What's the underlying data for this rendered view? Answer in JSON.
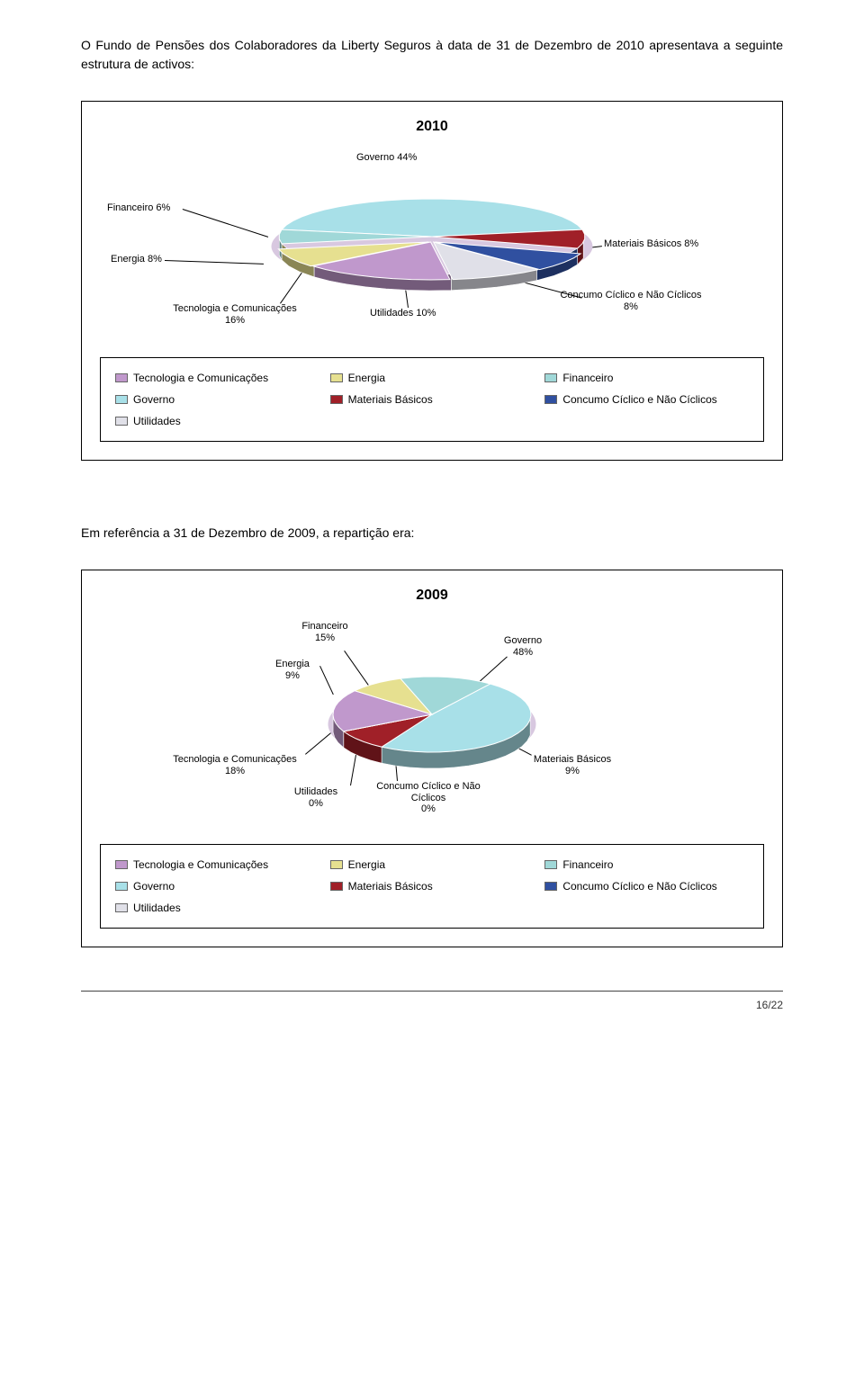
{
  "intro_text": "O Fundo de Pensões dos Colaboradores da Liberty Seguros à data de 31 de Dezembro de 2010 apresentava a seguinte estrutura de activos:",
  "mid_text": "Em referência a 31 de Dezembro de 2009, a repartição era:",
  "page_number": "16/22",
  "palette": {
    "tec": "#c098cc",
    "energia": "#e6e090",
    "financeiro": "#a0d8d8",
    "governo": "#a8e0e8",
    "materiais": "#a02028",
    "concumo": "#3050a0",
    "utilidades": "#e0e0e8",
    "plate": "#d8c8e0"
  },
  "chart2010": {
    "title": "2010",
    "type": "pie3d",
    "slices": [
      {
        "key": "governo",
        "label": "Governo 44%",
        "value": 44
      },
      {
        "key": "materiais",
        "label": "Materiais Básicos 8%",
        "value": 8
      },
      {
        "key": "concumo",
        "label": "Concumo Cíclico e Não Cíclicos\n8%",
        "value": 8
      },
      {
        "key": "utilidades",
        "label": "Utilidades 10%",
        "value": 10
      },
      {
        "key": "tec",
        "label": "Tecnologia e Comunicações\n16%",
        "value": 16
      },
      {
        "key": "energia",
        "label": "Energia 8%",
        "value": 8
      },
      {
        "key": "financeiro",
        "label": "Financeiro 6%",
        "value": 6
      }
    ],
    "legend": [
      [
        "Tecnologia e Comunicações",
        "tec"
      ],
      [
        "Energia",
        "energia"
      ],
      [
        "Financeiro",
        "financeiro"
      ],
      [
        "Governo",
        "governo"
      ],
      [
        "Materiais Básicos",
        "materiais"
      ],
      [
        "Concumo Cíclico e Não Cíclicos",
        "concumo"
      ],
      [
        "Utilidades",
        "utilidades"
      ]
    ]
  },
  "chart2009": {
    "title": "2009",
    "type": "pie3d",
    "slices": [
      {
        "key": "governo",
        "label": "Governo\n48%",
        "value": 48
      },
      {
        "key": "materiais",
        "label": "Materiais Básicos\n9%",
        "value": 9
      },
      {
        "key": "concumo",
        "label": "Concumo Cíclico e Não\nCíclicos\n0%",
        "value": 0
      },
      {
        "key": "utilidades",
        "label": "Utilidades\n0%",
        "value": 0
      },
      {
        "key": "tec",
        "label": "Tecnologia e Comunicações\n18%",
        "value": 18
      },
      {
        "key": "energia",
        "label": "Energia\n9%",
        "value": 9
      },
      {
        "key": "financeiro",
        "label": "Financeiro\n15%",
        "value": 15
      }
    ],
    "legend": [
      [
        "Tecnologia e Comunicações",
        "tec"
      ],
      [
        "Energia",
        "energia"
      ],
      [
        "Financeiro",
        "financeiro"
      ],
      [
        "Governo",
        "governo"
      ],
      [
        "Materiais Básicos",
        "materiais"
      ],
      [
        "Concumo Cíclico e Não Cíclicos",
        "concumo"
      ],
      [
        "Utilidades",
        "utilidades"
      ]
    ]
  }
}
